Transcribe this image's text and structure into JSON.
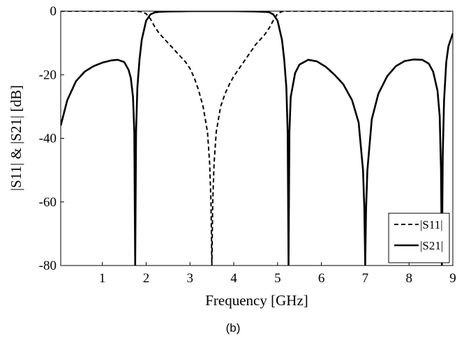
{
  "chart_data": {
    "type": "line",
    "xlabel": "Frequency [GHz]",
    "ylabel": "|S11| & |S21| [dB]",
    "xlim": [
      0.05,
      9.0
    ],
    "ylim": [
      -80,
      0
    ],
    "x_ticks": [
      1,
      2,
      3,
      4,
      5,
      6,
      7,
      8,
      9
    ],
    "y_ticks": [
      0,
      -20,
      -40,
      -60,
      -80
    ],
    "grid": false,
    "legend_position": "bottom-right",
    "caption": "(b)",
    "series": [
      {
        "name": "|S11|",
        "style": "dashed",
        "color": "#000000",
        "x": [
          0.05,
          0.5,
          1.0,
          1.5,
          1.75,
          1.9,
          2.0,
          2.1,
          2.2,
          2.3,
          2.4,
          2.5,
          2.6,
          2.7,
          2.8,
          2.9,
          3.0,
          3.1,
          3.2,
          3.3,
          3.4,
          3.45,
          3.48,
          3.5,
          3.52,
          3.55,
          3.6,
          3.7,
          3.8,
          3.9,
          4.0,
          4.1,
          4.2,
          4.3,
          4.4,
          4.5,
          4.6,
          4.7,
          4.8,
          4.9,
          5.0,
          5.1,
          5.25,
          5.5,
          6.0,
          6.5,
          7.0,
          7.5,
          8.0,
          8.5,
          8.75,
          9.0
        ],
        "y": [
          0,
          0,
          0,
          0,
          0,
          -0.2,
          -0.8,
          -2.5,
          -5.0,
          -7.0,
          -8.5,
          -10.0,
          -11.5,
          -13.0,
          -14.5,
          -16.0,
          -18.0,
          -21.0,
          -25.0,
          -30.0,
          -38.0,
          -48.0,
          -60.0,
          -80.0,
          -60.0,
          -48.0,
          -38.0,
          -30.0,
          -26.0,
          -23.0,
          -20.5,
          -18.5,
          -16.5,
          -14.5,
          -12.5,
          -10.5,
          -9.0,
          -7.5,
          -5.5,
          -3.0,
          -0.8,
          -0.1,
          0,
          0,
          0,
          0,
          0,
          0,
          0,
          0,
          0,
          0
        ]
      },
      {
        "name": "|S21|",
        "style": "solid",
        "color": "#000000",
        "x": [
          0.05,
          0.2,
          0.4,
          0.6,
          0.8,
          1.0,
          1.2,
          1.35,
          1.5,
          1.6,
          1.65,
          1.7,
          1.73,
          1.75,
          1.77,
          1.8,
          1.85,
          1.9,
          2.0,
          2.1,
          2.2,
          2.3,
          2.5,
          3.0,
          3.5,
          4.0,
          4.5,
          4.8,
          4.9,
          5.0,
          5.1,
          5.15,
          5.2,
          5.23,
          5.25,
          5.27,
          5.3,
          5.4,
          5.5,
          5.7,
          5.9,
          6.1,
          6.3,
          6.5,
          6.7,
          6.85,
          6.95,
          6.98,
          7.0,
          7.02,
          7.05,
          7.15,
          7.3,
          7.5,
          7.7,
          7.9,
          8.1,
          8.3,
          8.45,
          8.55,
          8.65,
          8.7,
          8.73,
          8.75,
          8.77,
          8.8,
          8.85,
          8.9,
          9.0
        ],
        "y": [
          -36.0,
          -28.0,
          -22.0,
          -19.0,
          -17.3,
          -16.2,
          -15.5,
          -15.3,
          -16.0,
          -18.5,
          -21.0,
          -27.0,
          -38.0,
          -80.0,
          -38.0,
          -24.0,
          -15.0,
          -9.0,
          -3.0,
          -1.0,
          -0.4,
          -0.2,
          -0.1,
          0,
          0,
          0,
          -0.1,
          -0.3,
          -1.0,
          -3.0,
          -9.0,
          -15.0,
          -24.0,
          -38.0,
          -80.0,
          -38.0,
          -27.0,
          -19.5,
          -16.8,
          -15.3,
          -15.8,
          -17.5,
          -20.0,
          -23.0,
          -28.0,
          -35.0,
          -50.0,
          -62.0,
          -80.0,
          -62.0,
          -50.0,
          -34.0,
          -26.0,
          -20.5,
          -17.3,
          -15.7,
          -15.2,
          -15.3,
          -16.5,
          -19.0,
          -25.0,
          -33.0,
          -50.0,
          -80.0,
          -45.0,
          -28.0,
          -16.0,
          -11.0,
          -7.0
        ]
      }
    ]
  }
}
